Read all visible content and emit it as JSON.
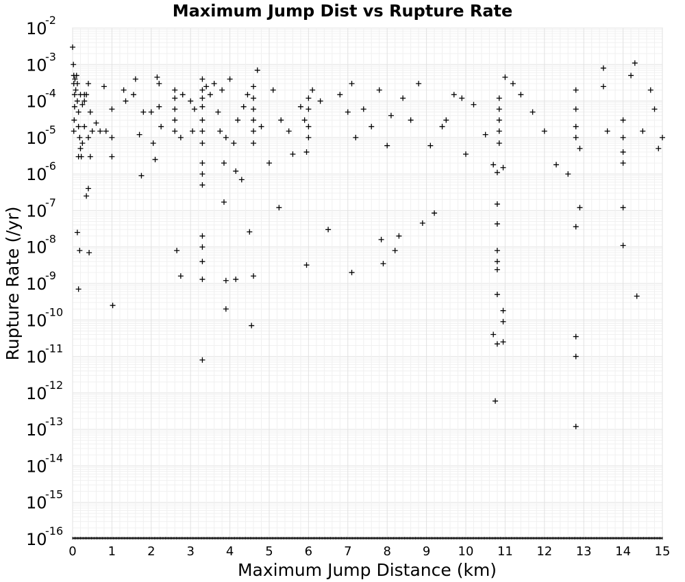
{
  "chart_data": {
    "type": "scatter",
    "title": "Maximum Jump Dist vs Rupture Rate",
    "xlabel": "Maximum Jump Distance (km)",
    "ylabel": "Rupture Rate (/yr)",
    "xlim": [
      0,
      15
    ],
    "ylim": [
      1e-16,
      0.01
    ],
    "yscale": "log",
    "grid": true,
    "legend": "none",
    "marker": "plus",
    "marker_color": "#000000",
    "xticks": [
      "0",
      "1",
      "2",
      "3",
      "4",
      "5",
      "6",
      "7",
      "8",
      "9",
      "10",
      "11",
      "12",
      "13",
      "14",
      "15"
    ],
    "yticks": [
      {
        "base": "10",
        "exp": "-2"
      },
      {
        "base": "10",
        "exp": "-3"
      },
      {
        "base": "10",
        "exp": "-4"
      },
      {
        "base": "10",
        "exp": "-5"
      },
      {
        "base": "10",
        "exp": "-6"
      },
      {
        "base": "10",
        "exp": "-7"
      },
      {
        "base": "10",
        "exp": "-8"
      },
      {
        "base": "10",
        "exp": "-9"
      },
      {
        "base": "10",
        "exp": "-10"
      },
      {
        "base": "10",
        "exp": "-11"
      },
      {
        "base": "10",
        "exp": "-12"
      },
      {
        "base": "10",
        "exp": "-13"
      },
      {
        "base": "10",
        "exp": "-14"
      },
      {
        "base": "10",
        "exp": "-15"
      },
      {
        "base": "10",
        "exp": "-16"
      }
    ],
    "points": [
      [
        0.0,
        0.003
      ],
      [
        0.02,
        0.001
      ],
      [
        0.03,
        0.0005
      ],
      [
        0.03,
        0.0003
      ],
      [
        0.05,
        0.00015
      ],
      [
        0.05,
        7e-05
      ],
      [
        0.04,
        3e-05
      ],
      [
        0.03,
        1.5e-05
      ],
      [
        0.06,
        0.0004
      ],
      [
        0.08,
        0.0002
      ],
      [
        0.1,
        0.0005
      ],
      [
        0.12,
        0.0003
      ],
      [
        0.12,
        0.0001
      ],
      [
        0.15,
        5e-05
      ],
      [
        0.15,
        2e-05
      ],
      [
        0.18,
        1e-05
      ],
      [
        0.2,
        5e-06
      ],
      [
        0.15,
        3e-06
      ],
      [
        0.22,
        3e-06
      ],
      [
        0.2,
        0.00015
      ],
      [
        0.25,
        8e-05
      ],
      [
        0.3,
        2e-05
      ],
      [
        0.3,
        0.0001
      ],
      [
        0.35,
        0.00015
      ],
      [
        0.4,
        0.0003
      ],
      [
        0.4,
        1e-05
      ],
      [
        0.45,
        5e-05
      ],
      [
        0.45,
        3e-06
      ],
      [
        0.5,
        1.5e-05
      ],
      [
        0.3,
        0.00015
      ],
      [
        0.25,
        7e-06
      ],
      [
        0.4,
        4e-07
      ],
      [
        0.35,
        2.5e-07
      ],
      [
        0.12,
        2.5e-08
      ],
      [
        0.18,
        8e-09
      ],
      [
        0.42,
        7e-09
      ],
      [
        0.15,
        7e-10
      ],
      [
        1.02,
        2.5e-10
      ],
      [
        0.6,
        2.5e-05
      ],
      [
        0.7,
        1.5e-05
      ],
      [
        0.8,
        0.00025
      ],
      [
        0.85,
        1.5e-05
      ],
      [
        1.0,
        6e-05
      ],
      [
        1.0,
        1e-05
      ],
      [
        1.0,
        3e-06
      ],
      [
        1.3,
        0.0002
      ],
      [
        1.35,
        0.0001
      ],
      [
        1.55,
        0.00015
      ],
      [
        1.6,
        0.0004
      ],
      [
        1.7,
        1.2e-05
      ],
      [
        1.75,
        9e-07
      ],
      [
        1.8,
        5e-05
      ],
      [
        2.0,
        5e-05
      ],
      [
        2.05,
        7e-06
      ],
      [
        2.1,
        2.5e-06
      ],
      [
        2.15,
        0.00045
      ],
      [
        2.2,
        0.0003
      ],
      [
        2.2,
        7e-05
      ],
      [
        2.25,
        2e-05
      ],
      [
        2.6,
        0.0002
      ],
      [
        2.6,
        0.00012
      ],
      [
        2.6,
        6e-05
      ],
      [
        2.6,
        3e-05
      ],
      [
        2.6,
        1.5e-05
      ],
      [
        2.65,
        8e-09
      ],
      [
        2.75,
        1e-05
      ],
      [
        2.75,
        1.6e-09
      ],
      [
        2.8,
        0.00015
      ],
      [
        3.0,
        0.0001
      ],
      [
        3.05,
        1.5e-05
      ],
      [
        3.1,
        6e-05
      ],
      [
        3.3,
        0.0004
      ],
      [
        3.3,
        0.0002
      ],
      [
        3.3,
        0.00012
      ],
      [
        3.3,
        7e-05
      ],
      [
        3.3,
        3e-05
      ],
      [
        3.3,
        1.5e-05
      ],
      [
        3.3,
        7e-06
      ],
      [
        3.3,
        2e-06
      ],
      [
        3.3,
        1e-06
      ],
      [
        3.3,
        5e-07
      ],
      [
        3.3,
        2e-08
      ],
      [
        3.3,
        1e-08
      ],
      [
        3.3,
        4e-09
      ],
      [
        3.3,
        1.3e-09
      ],
      [
        3.3,
        8e-12
      ],
      [
        3.4,
        0.00025
      ],
      [
        3.5,
        0.00015
      ],
      [
        3.6,
        0.0003
      ],
      [
        3.7,
        5e-05
      ],
      [
        3.75,
        1.5e-05
      ],
      [
        3.8,
        0.0002
      ],
      [
        3.85,
        2e-06
      ],
      [
        3.85,
        1.7e-07
      ],
      [
        3.9,
        1e-05
      ],
      [
        3.9,
        1.2e-09
      ],
      [
        3.9,
        2e-10
      ],
      [
        4.0,
        0.0004
      ],
      [
        4.1,
        7e-06
      ],
      [
        4.15,
        1.2e-06
      ],
      [
        4.15,
        1.3e-09
      ],
      [
        4.2,
        3e-05
      ],
      [
        4.3,
        7e-07
      ],
      [
        4.35,
        7e-05
      ],
      [
        4.45,
        0.00015
      ],
      [
        4.5,
        2.6e-08
      ],
      [
        4.6,
        0.00025
      ],
      [
        4.6,
        0.00012
      ],
      [
        4.6,
        6e-05
      ],
      [
        4.6,
        3e-05
      ],
      [
        4.6,
        1.5e-05
      ],
      [
        4.6,
        7e-06
      ],
      [
        4.6,
        1.6e-09
      ],
      [
        4.55,
        7e-11
      ],
      [
        4.7,
        0.0007
      ],
      [
        4.8,
        2e-05
      ],
      [
        5.0,
        2e-06
      ],
      [
        5.1,
        0.0002
      ],
      [
        5.25,
        1.2e-07
      ],
      [
        5.3,
        3e-05
      ],
      [
        5.5,
        1.5e-05
      ],
      [
        5.6,
        3.5e-06
      ],
      [
        5.8,
        7e-05
      ],
      [
        5.9,
        3e-05
      ],
      [
        5.95,
        4e-06
      ],
      [
        5.95,
        3.2e-09
      ],
      [
        6.0,
        0.00012
      ],
      [
        6.0,
        6e-05
      ],
      [
        6.0,
        2e-05
      ],
      [
        6.0,
        1e-05
      ],
      [
        6.1,
        0.0002
      ],
      [
        6.3,
        0.0001
      ],
      [
        6.5,
        3e-08
      ],
      [
        6.8,
        0.00015
      ],
      [
        7.0,
        5e-05
      ],
      [
        7.1,
        0.0003
      ],
      [
        7.1,
        2e-09
      ],
      [
        7.2,
        1e-05
      ],
      [
        7.4,
        6e-05
      ],
      [
        7.6,
        2e-05
      ],
      [
        7.8,
        0.0002
      ],
      [
        7.85,
        1.6e-08
      ],
      [
        7.9,
        3.5e-09
      ],
      [
        8.0,
        6e-06
      ],
      [
        8.1,
        4e-05
      ],
      [
        8.2,
        8e-09
      ],
      [
        8.3,
        2e-08
      ],
      [
        8.4,
        0.00012
      ],
      [
        8.6,
        3e-05
      ],
      [
        8.8,
        0.0003
      ],
      [
        8.9,
        4.5e-08
      ],
      [
        9.1,
        6e-06
      ],
      [
        9.2,
        8.5e-08
      ],
      [
        9.4,
        2e-05
      ],
      [
        9.5,
        3e-05
      ],
      [
        9.7,
        0.00015
      ],
      [
        9.9,
        0.00012
      ],
      [
        10.0,
        3.5e-06
      ],
      [
        10.2,
        8e-05
      ],
      [
        10.5,
        1.2e-05
      ],
      [
        10.7,
        4e-11
      ],
      [
        10.7,
        1.8e-06
      ],
      [
        10.75,
        6e-13
      ],
      [
        10.8,
        1.5e-07
      ],
      [
        10.8,
        4.3e-08
      ],
      [
        10.8,
        8e-09
      ],
      [
        10.8,
        4e-09
      ],
      [
        10.8,
        2.4e-09
      ],
      [
        10.8,
        5e-10
      ],
      [
        10.8,
        2.2e-11
      ],
      [
        10.85,
        0.00012
      ],
      [
        10.85,
        6e-05
      ],
      [
        10.85,
        3e-05
      ],
      [
        10.85,
        1.5e-05
      ],
      [
        10.85,
        7e-06
      ],
      [
        10.8,
        1.1e-06
      ],
      [
        10.95,
        1.8e-10
      ],
      [
        10.95,
        9e-11
      ],
      [
        10.95,
        2.5e-11
      ],
      [
        10.95,
        1.5e-06
      ],
      [
        11.0,
        0.00045
      ],
      [
        11.2,
        0.0003
      ],
      [
        11.4,
        0.00015
      ],
      [
        11.7,
        5e-05
      ],
      [
        12.0,
        1.5e-05
      ],
      [
        12.3,
        1.8e-06
      ],
      [
        12.6,
        1e-06
      ],
      [
        12.8,
        0.0002
      ],
      [
        12.8,
        6e-05
      ],
      [
        12.8,
        2e-05
      ],
      [
        12.8,
        1e-05
      ],
      [
        12.8,
        3.6e-08
      ],
      [
        12.8,
        3.5e-11
      ],
      [
        12.8,
        1e-11
      ],
      [
        12.8,
        1.2e-13
      ],
      [
        12.9,
        1.2e-07
      ],
      [
        12.9,
        5e-06
      ],
      [
        13.5,
        0.0008
      ],
      [
        13.5,
        0.00025
      ],
      [
        13.6,
        1.5e-05
      ],
      [
        14.0,
        3e-05
      ],
      [
        14.0,
        1e-05
      ],
      [
        14.0,
        4e-06
      ],
      [
        14.0,
        2e-06
      ],
      [
        14.0,
        1.2e-07
      ],
      [
        14.0,
        1.1e-08
      ],
      [
        14.2,
        0.0005
      ],
      [
        14.3,
        0.0011
      ],
      [
        14.35,
        4.5e-10
      ],
      [
        14.5,
        1.5e-05
      ],
      [
        14.7,
        0.0002
      ],
      [
        14.8,
        6e-05
      ],
      [
        14.9,
        5e-06
      ],
      [
        15.0,
        1e-05
      ]
    ],
    "bottom_rug": {
      "value": 1e-16,
      "x_min": 0,
      "x_max": 15,
      "x_step": 0.04
    }
  }
}
